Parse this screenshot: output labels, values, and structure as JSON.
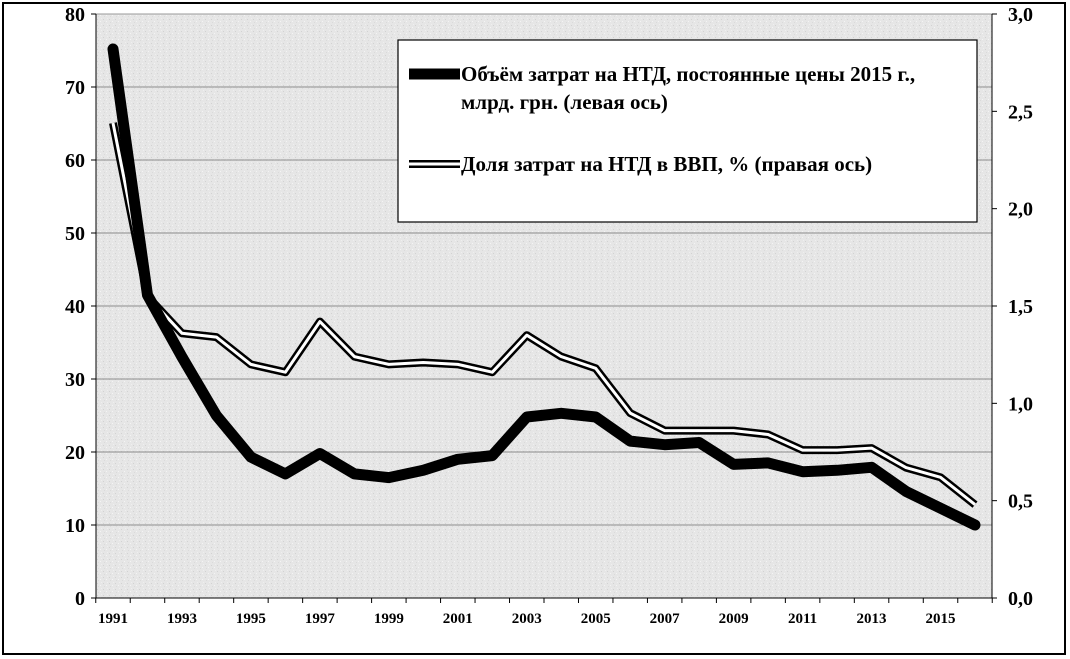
{
  "chart_data": {
    "type": "line",
    "title": "",
    "xlabel": "",
    "ylabel_left": "",
    "ylabel_right": "",
    "x": [
      1991,
      1992,
      1993,
      1994,
      1995,
      1996,
      1997,
      1998,
      1999,
      2000,
      2001,
      2002,
      2003,
      2004,
      2005,
      2006,
      2007,
      2008,
      2009,
      2010,
      2011,
      2012,
      2013,
      2014,
      2015,
      2016
    ],
    "x_tick_labels": [
      "1991",
      "1993",
      "1995",
      "1997",
      "1999",
      "2001",
      "2003",
      "2005",
      "2007",
      "2009",
      "2011",
      "2013",
      "2015"
    ],
    "y_left_lim": [
      0,
      80
    ],
    "y_left_tick_labels": [
      "0",
      "10",
      "20",
      "30",
      "40",
      "50",
      "60",
      "70",
      "80"
    ],
    "y_right_lim": [
      0,
      3.0
    ],
    "y_right_tick_labels": [
      "0,0",
      "0,5",
      "1,0",
      "1,5",
      "2,0",
      "2,5",
      "3,0"
    ],
    "grid": true,
    "legend_position": "top-right",
    "series": [
      {
        "name": "Объём затрат на НТД, постоянные цены 2015 г., млрд. грн. (левая ось)",
        "axis": "left",
        "style": "thick-black",
        "values": [
          75.2,
          41.5,
          33.0,
          25.0,
          19.3,
          17.0,
          19.8,
          17.0,
          16.5,
          17.5,
          19.0,
          19.5,
          24.8,
          25.3,
          24.8,
          21.5,
          21.0,
          21.3,
          18.3,
          18.5,
          17.3,
          17.5,
          17.9,
          14.6,
          12.3,
          10.0
        ]
      },
      {
        "name": "Доля затрат на НТД в ВВП, % (правая ось)",
        "axis": "right",
        "style": "double-outline",
        "values": [
          2.44,
          1.55,
          1.36,
          1.34,
          1.2,
          1.16,
          1.42,
          1.24,
          1.2,
          1.21,
          1.2,
          1.16,
          1.35,
          1.24,
          1.18,
          0.95,
          0.86,
          0.86,
          0.86,
          0.84,
          0.76,
          0.76,
          0.77,
          0.67,
          0.62,
          0.48
        ]
      }
    ]
  },
  "legend": {
    "item1_line1": "Объём затрат на НТД, постоянные цены 2015 г.,",
    "item1_line2": "млрд. грн. (левая ось)",
    "item2_line1": "Доля затрат на НТД в ВВП, % (правая ось)"
  }
}
